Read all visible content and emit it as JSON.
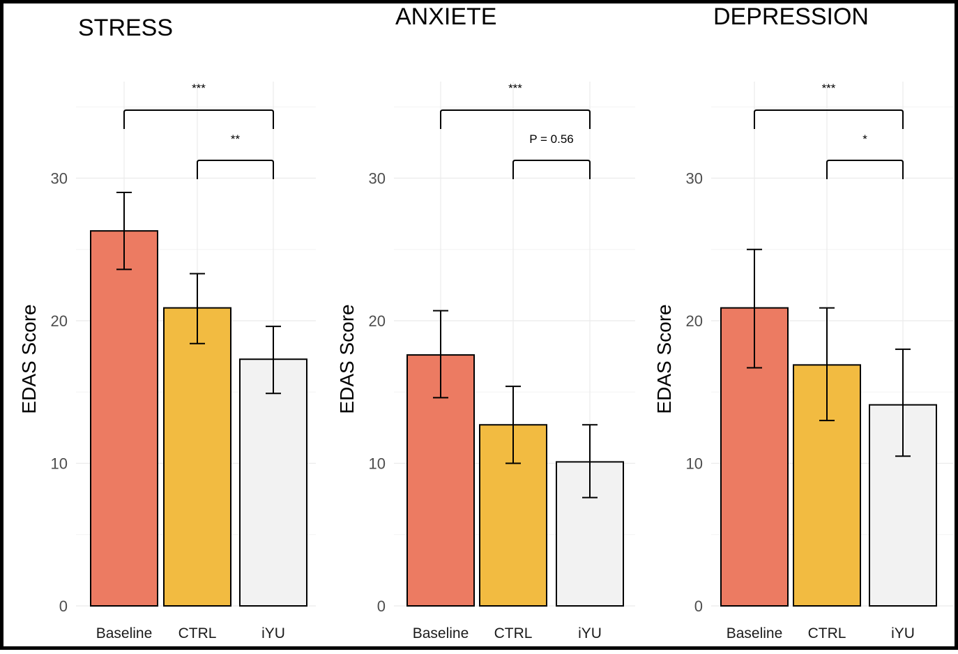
{
  "chart_data": [
    {
      "type": "bar",
      "title": "STRESS",
      "ylabel": "EDAS Score",
      "xlabel": "",
      "categories": [
        "Baseline",
        "CTRL",
        "iYU"
      ],
      "values": [
        26.3,
        20.9,
        17.3
      ],
      "error_low": [
        23.6,
        18.4,
        14.9
      ],
      "error_high": [
        29.0,
        23.3,
        19.6
      ],
      "colors": [
        "#ec7b62",
        "#f2bb41",
        "#f2f2f2"
      ],
      "ylim": [
        0,
        36
      ],
      "yticks": [
        0,
        10,
        20,
        30
      ],
      "grid": true,
      "significance": [
        {
          "from": "Baseline",
          "to": "iYU",
          "label": "***"
        },
        {
          "from": "CTRL",
          "to": "iYU",
          "label": "**"
        }
      ]
    },
    {
      "type": "bar",
      "title": "ANXIETE",
      "ylabel": "EDAS Score",
      "xlabel": "",
      "categories": [
        "Baseline",
        "CTRL",
        "iYU"
      ],
      "values": [
        17.6,
        12.7,
        10.1
      ],
      "error_low": [
        14.6,
        10.0,
        7.6
      ],
      "error_high": [
        20.7,
        15.4,
        12.7
      ],
      "colors": [
        "#ec7b62",
        "#f2bb41",
        "#f2f2f2"
      ],
      "ylim": [
        0,
        36
      ],
      "yticks": [
        0,
        10,
        20,
        30
      ],
      "grid": true,
      "significance": [
        {
          "from": "Baseline",
          "to": "iYU",
          "label": "***"
        },
        {
          "from": "CTRL",
          "to": "iYU",
          "label": "P = 0.56"
        }
      ]
    },
    {
      "type": "bar",
      "title": "DEPRESSION",
      "ylabel": "EDAS Score",
      "xlabel": "",
      "categories": [
        "Baseline",
        "CTRL",
        "iYU"
      ],
      "values": [
        20.9,
        16.9,
        14.1
      ],
      "error_low": [
        16.7,
        13.0,
        10.5
      ],
      "error_high": [
        25.0,
        20.9,
        18.0
      ],
      "colors": [
        "#ec7b62",
        "#f2bb41",
        "#f2f2f2"
      ],
      "ylim": [
        0,
        36
      ],
      "yticks": [
        0,
        10,
        20,
        30
      ],
      "grid": true,
      "significance": [
        {
          "from": "Baseline",
          "to": "iYU",
          "label": "***"
        },
        {
          "from": "CTRL",
          "to": "iYU",
          "label": "*"
        }
      ]
    }
  ]
}
